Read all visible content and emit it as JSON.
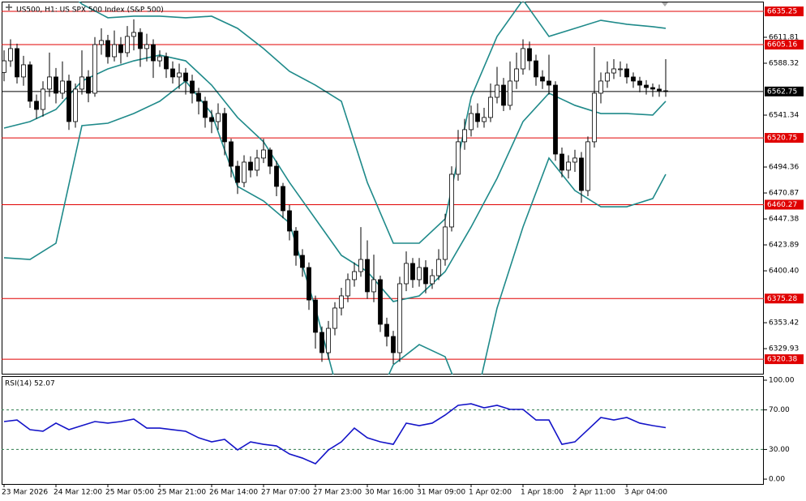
{
  "chart_data": {
    "type": "candlestick",
    "title": "US500, H1:  US SPX 500 Index (S&P 500)",
    "categories": [
      "23 Mar 2026",
      null,
      null,
      null,
      null,
      null,
      null,
      null,
      "24 Mar 12:00",
      null,
      null,
      null,
      null,
      null,
      null,
      null,
      "25 Mar 05:00",
      null,
      null,
      null,
      null,
      null,
      null,
      null,
      "25 Mar 21:00",
      null,
      null,
      null,
      null,
      null,
      null,
      null,
      "26 Mar 14:00",
      null,
      null,
      null,
      null,
      null,
      null,
      null,
      "27 Mar 07:00",
      null,
      null,
      null,
      null,
      null,
      null,
      null,
      "27 Mar 23:00",
      null,
      null,
      null,
      null,
      null,
      null,
      null,
      "30 Mar 16:00",
      null,
      null,
      null,
      null,
      null,
      null,
      null,
      "31 Mar 09:00",
      null,
      null,
      null,
      null,
      null,
      null,
      null,
      "1 Apr 02:00",
      null,
      null,
      null,
      null,
      null,
      null,
      null,
      "1 Apr 18:00",
      null,
      null,
      null,
      null,
      null,
      null,
      null,
      "2 Apr 11:00",
      null,
      null,
      null,
      null,
      null,
      null,
      null,
      "3 Apr 04:00",
      null,
      null,
      null,
      null,
      null,
      null
    ],
    "open": [
      6580,
      6590.5,
      6601.6,
      6575.9,
      6586.9,
      6553.9,
      6546.5,
      6564.9,
      6575.9,
      6561.2,
      6572.2,
      6535.5,
      6564.9,
      6575.9,
      6561.2,
      6605.2,
      6608.9,
      6594.2,
      6605.2,
      6597.9,
      6612.6,
      6616.2,
      6601.6,
      6605.2,
      6590.5,
      6594.2,
      6583.2,
      6575.9,
      6579.5,
      6572.2,
      6561.2,
      6553.9,
      6539.2,
      6535.5,
      6542.8,
      6517.2,
      6495.1,
      6480.4,
      6498.8,
      6491.5,
      6502.5,
      6509.8,
      6495.1,
      6476.8,
      6454.8,
      6436.4,
      6414.4,
      6403.4,
      6374,
      6344.7,
      6326.3,
      6348.3,
      6366.7,
      6377.7,
      6392.4,
      6399.7,
      6410.7,
      6381.4,
      6392.4,
      6352,
      6341,
      6326.3,
      6388.7,
      6407.1,
      6392.4,
      6403.4,
      6388.7,
      6396,
      6410.7,
      6440.1,
      6487.8,
      6517.2,
      6528.2,
      6542.8,
      6535.5,
      6539.2,
      6557.5,
      6568.5,
      6550.2,
      6572.2,
      6583.2,
      6601.6,
      6590.5,
      6575.9,
      6572.2,
      6568.5,
      6506.1,
      6491.5,
      6498.8,
      6502.5,
      6473.1,
      6517.2,
      6561.2,
      6572.2,
      6579.5,
      6583.2,
      6583.2,
      6575.9,
      6572.2,
      6568.5,
      6566.3,
      6564.9,
      6563.4
    ],
    "high": [
      6600,
      6610,
      6606,
      6595,
      6590,
      6560,
      6572,
      6598,
      6584,
      6590,
      6578,
      6570,
      6600,
      6582,
      6612,
      6620,
      6614,
      6618,
      6612,
      6622,
      6628,
      6620,
      6615,
      6610,
      6600,
      6598,
      6590,
      6588,
      6584,
      6578,
      6566,
      6558,
      6546,
      6552,
      6548,
      6520,
      6500,
      6505,
      6504,
      6510,
      6520,
      6512,
      6500,
      6480,
      6460,
      6440,
      6420,
      6408,
      6378,
      6350,
      6355,
      6372,
      6385,
      6398,
      6408,
      6440,
      6428,
      6415,
      6396,
      6358,
      6346,
      6395,
      6418,
      6412,
      6412,
      6410,
      6402,
      6420,
      6452,
      6495,
      6528,
      6538,
      6550,
      6552,
      6548,
      6570,
      6585,
      6575,
      6590,
      6598,
      6610,
      6608,
      6596,
      6582,
      6596,
      6572,
      6512,
      6505,
      6510,
      6508,
      6522,
      6603,
      6580,
      6590,
      6592,
      6590,
      6588,
      6580,
      6576,
      6573,
      6570,
      6569,
      6592
    ],
    "low": [
      6572,
      6585,
      6570,
      6568,
      6548,
      6538,
      6540,
      6558,
      6552,
      6556,
      6528,
      6530,
      6560,
      6553,
      6558,
      6596,
      6588,
      6590,
      6588,
      6594,
      6600,
      6585,
      6590,
      6575,
      6585,
      6575,
      6570,
      6565,
      6560,
      6552,
      6542,
      6530,
      6525,
      6528,
      6505,
      6485,
      6470,
      6476,
      6485,
      6486,
      6498,
      6488,
      6468,
      6448,
      6428,
      6405,
      6395,
      6365,
      6330,
      6318,
      6320,
      6342,
      6360,
      6372,
      6386,
      6395,
      6375,
      6372,
      6345,
      6332,
      6316,
      6318,
      6382,
      6385,
      6386,
      6380,
      6384,
      6392,
      6405,
      6436,
      6482,
      6510,
      6522,
      6530,
      6530,
      6535,
      6552,
      6545,
      6546,
      6565,
      6578,
      6582,
      6568,
      6565,
      6560,
      6500,
      6485,
      6484,
      6490,
      6462,
      6468,
      6512,
      6552,
      6566,
      6574,
      6576,
      6570,
      6566,
      6562,
      6560,
      6558,
      6558,
      6558
    ],
    "close": [
      6590.5,
      6601.6,
      6575.9,
      6586.9,
      6553.9,
      6546.5,
      6564.9,
      6575.9,
      6561.2,
      6572.2,
      6535.5,
      6564.9,
      6575.9,
      6561.2,
      6605.2,
      6608.9,
      6594.2,
      6605.2,
      6597.9,
      6612.6,
      6616.2,
      6601.6,
      6605.2,
      6590.5,
      6594.2,
      6583.2,
      6575.9,
      6579.5,
      6572.2,
      6561.2,
      6553.9,
      6539.2,
      6535.5,
      6542.8,
      6517.2,
      6495.1,
      6480.4,
      6498.8,
      6491.5,
      6502.5,
      6509.8,
      6495.1,
      6476.8,
      6454.8,
      6436.4,
      6414.4,
      6403.4,
      6374,
      6344.7,
      6326.3,
      6348.3,
      6366.7,
      6377.7,
      6392.4,
      6399.7,
      6410.7,
      6381.4,
      6392.4,
      6352,
      6341,
      6326.3,
      6388.7,
      6407.1,
      6392.4,
      6403.4,
      6388.7,
      6396,
      6410.7,
      6440.1,
      6487.8,
      6517.2,
      6528.2,
      6542.8,
      6535.5,
      6539.2,
      6557.5,
      6568.5,
      6550.2,
      6572.2,
      6583.2,
      6601.6,
      6590.5,
      6575.9,
      6572.2,
      6568.5,
      6506.1,
      6491.5,
      6498.8,
      6502.5,
      6473.1,
      6517.2,
      6561.2,
      6572.2,
      6579.5,
      6583.2,
      6583.2,
      6575.9,
      6572.2,
      6568.5,
      6566.3,
      6564.9,
      6563.4,
      6562.75
    ],
    "up_color": "#ffffff",
    "down_color": "#000000",
    "ylim": [
      6306.5,
      6644.1
    ],
    "yticks": [
      6611.81,
      6588.32,
      6541.34,
      6494.36,
      6470.87,
      6447.38,
      6423.89,
      {
        "value": 6400.4,
        "label": "6400.40"
      },
      6353.42,
      6329.93
    ],
    "bollinger": {
      "color": "#1f8a8a",
      "x": [
        0,
        4,
        8,
        12,
        16,
        20,
        24,
        28,
        32,
        36,
        40,
        44,
        48,
        52,
        56,
        60,
        64,
        68,
        72,
        76,
        80,
        84,
        88,
        92,
        96,
        100,
        102
      ],
      "upper": [
        6689.6,
        6678.6,
        6664,
        6641.9,
        6629.5,
        6630.9,
        6630.9,
        6629.5,
        6630.9,
        6619.9,
        6601.6,
        6581,
        6568.5,
        6553.9,
        6480.4,
        6425.4,
        6425.4,
        6447.4,
        6557.5,
        6612.6,
        6645.6,
        6612.6,
        6619.9,
        6627.2,
        6623.6,
        6621.4,
        6619.9
      ],
      "middle": [
        6529.6,
        6535.5,
        6546.5,
        6572.2,
        6583.2,
        6590.5,
        6595.7,
        6590.5,
        6568.5,
        6539.2,
        6517.2,
        6480.4,
        6447.4,
        6414.4,
        6399.7,
        6372.6,
        6377.7,
        6399.7,
        6440.1,
        6484.1,
        6535.5,
        6561.2,
        6550.2,
        6542.8,
        6542.8,
        6541.4,
        6553.9
      ],
      "lower": [
        6412.2,
        6410.7,
        6425.4,
        6531.8,
        6534,
        6542.8,
        6553.9,
        6572.2,
        6542.8,
        6476.8,
        6463.6,
        6443.7,
        6366.7,
        6278.6,
        6263.9,
        6315.3,
        6333.6,
        6322.6,
        6263.9,
        6366.7,
        6440.1,
        6502.5,
        6473.1,
        6458.4,
        6458.4,
        6465.8,
        6487.8
      ]
    },
    "levels": [
      {
        "value": 6635.25,
        "color": "#e00000"
      },
      {
        "value": 6605.16,
        "color": "#e00000"
      },
      {
        "value": 6520.75,
        "color": "#e00000"
      },
      {
        "value": 6460.27,
        "color": "#e00000"
      },
      {
        "value": 6375.28,
        "color": "#e00000"
      },
      {
        "value": 6320.38,
        "color": "#e00000"
      }
    ],
    "current_price": 6562.75,
    "rsi": {
      "label": "RSI(14) 52.07",
      "color": "#1414c8",
      "x": [
        0,
        2,
        4,
        6,
        8,
        10,
        12,
        14,
        16,
        18,
        20,
        22,
        24,
        26,
        28,
        30,
        32,
        34,
        36,
        38,
        40,
        42,
        44,
        46,
        48,
        50,
        52,
        54,
        56,
        58,
        60,
        62,
        64,
        66,
        68,
        70,
        72,
        74,
        76,
        78,
        80,
        82,
        84,
        86,
        88,
        90,
        92,
        94,
        96,
        98,
        100,
        102
      ],
      "values": [
        58.2,
        59.8,
        50,
        48.4,
        56.6,
        50,
        54.1,
        58.2,
        56.6,
        58.2,
        60.7,
        51.6,
        51.6,
        50,
        48.4,
        41.8,
        37.7,
        40.2,
        29.5,
        37.7,
        35.2,
        33.6,
        25.4,
        21.3,
        15.6,
        29.5,
        37.7,
        51.6,
        41.8,
        37.7,
        35.2,
        56.6,
        54.1,
        56.6,
        64.8,
        74.6,
        76.2,
        72.1,
        74.6,
        70.5,
        70.5,
        59.8,
        59.8,
        35.2,
        37.7,
        50,
        62.3,
        59.8,
        62.3,
        56.6,
        54.1,
        52.07
      ],
      "ylim": [
        -5.7,
        104.1
      ],
      "yticks": [
        {
          "value": 100,
          "label": "100.00"
        },
        {
          "value": 70,
          "label": "70.00"
        },
        {
          "value": 30,
          "label": "30.00"
        },
        {
          "value": 0,
          "label": "0.00"
        }
      ],
      "levels": [
        70,
        30
      ]
    }
  }
}
